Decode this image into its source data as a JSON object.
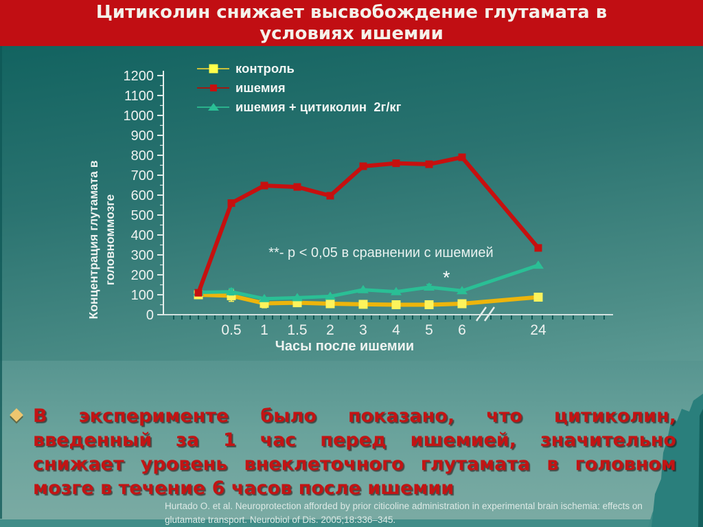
{
  "slide": {
    "title": "Цитиколин снижает высвобождение глутамата в условиях ишемии",
    "title_lines": [
      "Цитиколин снижает высвобождение глутамата в",
      "условиях ишемии"
    ],
    "bullet": {
      "marker": "diamond",
      "full_text": "В эксперименте было показано, что цитиколин, введенный за 1 час перед ишемией, значительно снижает уровень внеклеточного глутамата в головном мозге в течение 6 часов после ишемии",
      "lines": [
        "В эксперименте было показано, что цитиколин,",
        "введенный за 1 час перед ишемией, значительно",
        "снижает уровень внеклеточного глутамата в головном",
        "мозге в течение 6 часов после ишемии"
      ]
    },
    "citation_lines": [
      "Hurtado O. et al. Neuroprotection afforded by prior citicoline administration in experimental brain ischemia: effects on",
      "glutamate transport. Neurobiol of Dis. 2005;18:336–345."
    ]
  },
  "colors": {
    "title_bar": "#c10e13",
    "title_text": "#f4f1ea",
    "background_top": "#11625f",
    "background_bottom": "#7caba4",
    "bullet_text": "#c21414",
    "axis": "#e6eeec",
    "series_control_line": "#edb50c",
    "series_control_marker": "#fdf35c",
    "series_ischemia": "#c6100f",
    "series_citicoline": "#2abf95",
    "mountain": "#2a7f7c"
  },
  "chart_data": {
    "type": "line",
    "x": [
      0,
      0.5,
      1,
      1.5,
      2,
      3,
      4,
      5,
      6,
      24
    ],
    "x_tick_labels": [
      "0.5",
      "1",
      "1.5",
      "2",
      "3",
      "4",
      "5",
      "6",
      "24"
    ],
    "xlabel": "Часы после ишемии",
    "ylabel": "Концентрация глутамата в головноммозге",
    "ylabel_lines": [
      "Концентрация глутамата в",
      "головноммозге"
    ],
    "ylim": [
      0,
      1200
    ],
    "ytick_step": 100,
    "y_minor_step": 50,
    "axis_break_after_x": 6,
    "grid": false,
    "legend_position": "top-left-inside",
    "annotation": "**- p < 0,05 в сравнении с ишемией",
    "significance_marker": "*",
    "significance_between_x": [
      5,
      6
    ],
    "series": [
      {
        "name": "контроль",
        "marker": "square",
        "color": "#edb50c",
        "marker_color": "#fdf35c",
        "values": [
          100,
          95,
          57,
          60,
          55,
          52,
          50,
          50,
          55,
          88
        ],
        "errors": [
          12,
          28,
          22,
          14,
          10,
          16,
          8,
          8,
          12,
          0
        ]
      },
      {
        "name": "ишемия",
        "marker": "square",
        "color": "#c6100f",
        "marker_color": "#c6100f",
        "values": [
          110,
          560,
          648,
          641,
          597,
          745,
          760,
          755,
          790,
          335
        ],
        "errors": [
          0,
          0,
          0,
          0,
          0,
          0,
          0,
          0,
          0,
          0
        ]
      },
      {
        "name": "ишемия + цитиколин  2г/кг",
        "marker": "triangle",
        "color": "#2abf95",
        "marker_color": "#2abf95",
        "values": [
          112,
          115,
          80,
          85,
          92,
          125,
          115,
          138,
          120,
          248
        ],
        "errors": [
          10,
          16,
          0,
          0,
          0,
          0,
          0,
          14,
          0,
          0
        ]
      }
    ]
  }
}
